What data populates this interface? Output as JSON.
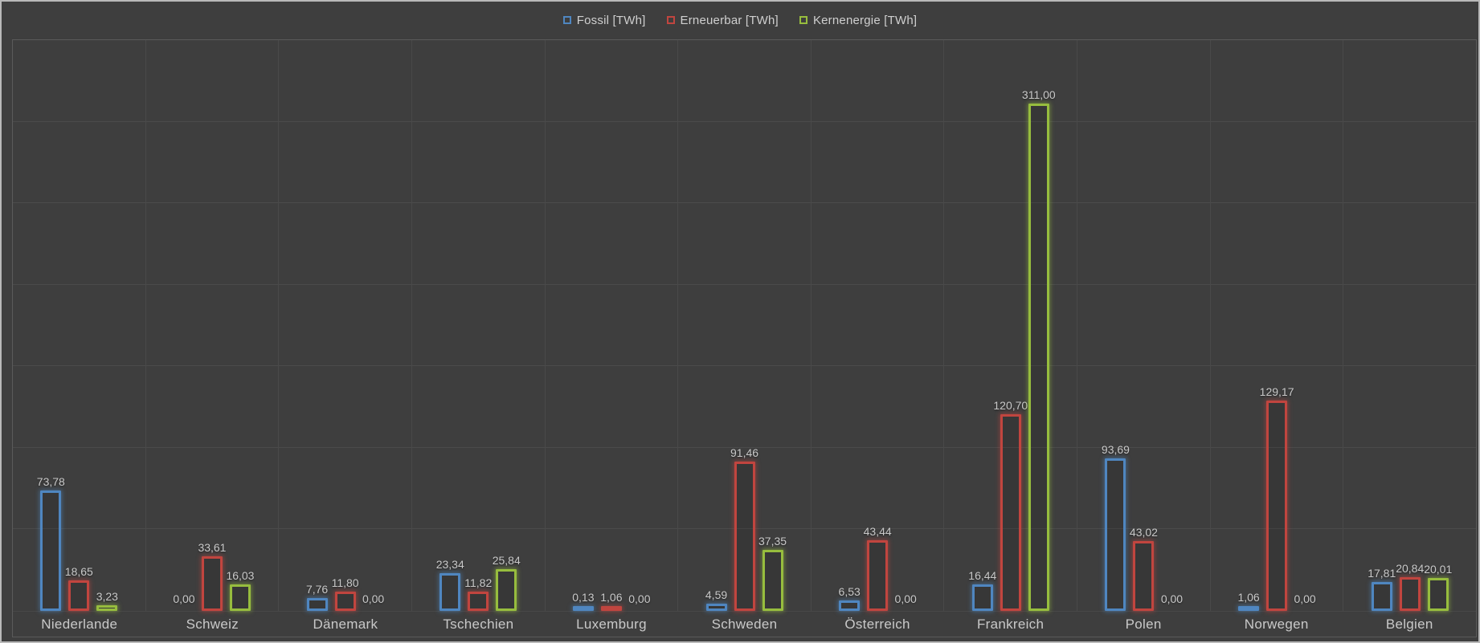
{
  "colors": {
    "background": "#3e3e3e",
    "outer_border": "#b9b9b9",
    "grid_line": "#4b4b4b",
    "plot_border": "#5a5a5a",
    "text": "#c9c9c9",
    "fossil_blue": "#4f86c0",
    "erneuerbar_red": "#c1453f",
    "kernenergie_green": "#97bd3e"
  },
  "chart_data": {
    "type": "bar",
    "title": "",
    "xlabel": "",
    "ylabel": "",
    "ylim": [
      0,
      350
    ],
    "grid_step": 50,
    "grid": true,
    "legend_position": "top-center",
    "value_labels": true,
    "decimal_separator": ",",
    "categories": [
      "Niederlande",
      "Schweiz",
      "Dänemark",
      "Tschechien",
      "Luxemburg",
      "Schweden",
      "Österreich",
      "Frankreich",
      "Polen",
      "Norwegen",
      "Belgien"
    ],
    "series": [
      {
        "name": "Fossil [TWh]",
        "color": "#4f86c0",
        "glow": "rgba(79,134,192,0.55)",
        "values": [
          73.78,
          0.0,
          7.76,
          23.34,
          0.13,
          4.59,
          6.53,
          16.44,
          93.69,
          1.06,
          17.81
        ],
        "labels": [
          "73,78",
          "0,00",
          "7,76",
          "23,34",
          "0,13",
          "4,59",
          "6,53",
          "16,44",
          "93,69",
          "1,06",
          "17,81"
        ]
      },
      {
        "name": "Erneuerbar [TWh]",
        "color": "#c1453f",
        "glow": "rgba(193,69,63,0.55)",
        "values": [
          18.65,
          33.61,
          11.8,
          11.82,
          1.06,
          91.46,
          43.44,
          120.7,
          43.02,
          129.17,
          20.84
        ],
        "labels": [
          "18,65",
          "33,61",
          "11,80",
          "11,82",
          "1,06",
          "91,46",
          "43,44",
          "120,70",
          "43,02",
          "129,17",
          "20,84"
        ]
      },
      {
        "name": "Kernenergie [TWh]",
        "color": "#97bd3e",
        "glow": "rgba(151,189,62,0.55)",
        "values": [
          3.23,
          16.03,
          0.0,
          25.84,
          0.0,
          37.35,
          0.0,
          311.0,
          0.0,
          0.0,
          20.01
        ],
        "labels": [
          "3,23",
          "16,03",
          "0,00",
          "25,84",
          "0,00",
          "37,35",
          "0,00",
          "311,00",
          "0,00",
          "0,00",
          "20,01"
        ]
      }
    ]
  }
}
